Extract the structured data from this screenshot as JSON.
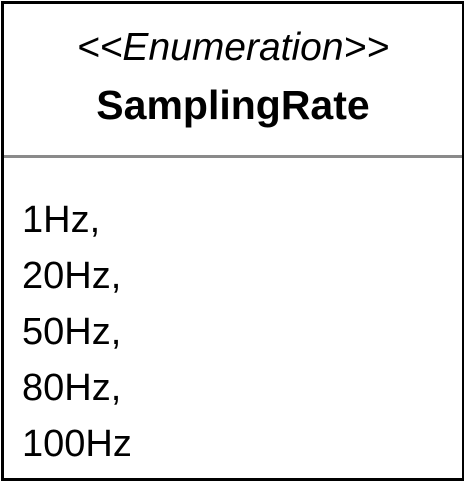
{
  "enumeration": {
    "stereotype": "<<Enumeration>>",
    "name": "SamplingRate",
    "literals": [
      "1Hz,",
      "20Hz,",
      "50Hz,",
      "80Hz,",
      "100Hz"
    ]
  },
  "colors": {
    "border": "#000000",
    "divider": "#8a8a8a",
    "background": "#ffffff"
  }
}
